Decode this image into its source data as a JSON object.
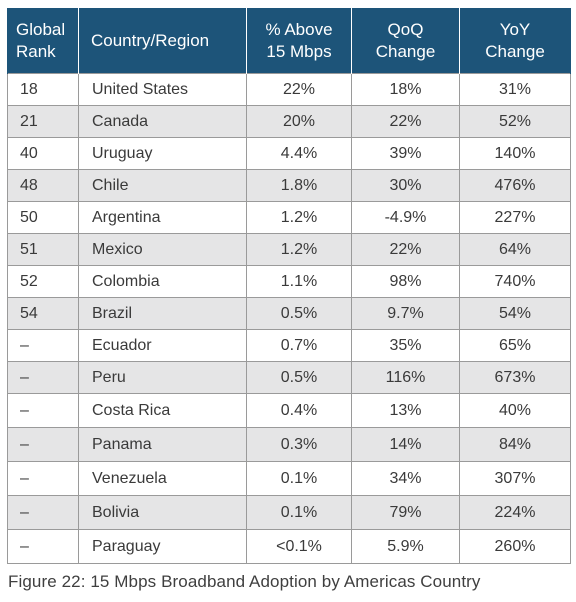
{
  "table": {
    "headers": {
      "rank_line1": "Global",
      "rank_line2": "Rank",
      "country": "Country/Region",
      "above_line1": "% Above",
      "above_line2": "15 Mbps",
      "qoq_line1": "QoQ",
      "qoq_line2": "Change",
      "yoy_line1": "YoY",
      "yoy_line2": "Change"
    },
    "rows": [
      {
        "rank": "18",
        "country": "United States",
        "above": "22%",
        "qoq": "18%",
        "yoy": "31%"
      },
      {
        "rank": "21",
        "country": "Canada",
        "above": "20%",
        "qoq": "22%",
        "yoy": "52%"
      },
      {
        "rank": "40",
        "country": "Uruguay",
        "above": "4.4%",
        "qoq": "39%",
        "yoy": "140%"
      },
      {
        "rank": "48",
        "country": "Chile",
        "above": "1.8%",
        "qoq": "30%",
        "yoy": "476%"
      },
      {
        "rank": "50",
        "country": "Argentina",
        "above": "1.2%",
        "qoq": "-4.9%",
        "yoy": "227%"
      },
      {
        "rank": "51",
        "country": "Mexico",
        "above": "1.2%",
        "qoq": "22%",
        "yoy": "64%"
      },
      {
        "rank": "52",
        "country": "Colombia",
        "above": "1.1%",
        "qoq": "98%",
        "yoy": "740%"
      },
      {
        "rank": "54",
        "country": "Brazil",
        "above": "0.5%",
        "qoq": "9.7%",
        "yoy": "54%"
      },
      {
        "rank": "–",
        "country": "Ecuador",
        "above": "0.7%",
        "qoq": "35%",
        "yoy": "65%"
      },
      {
        "rank": "–",
        "country": "Peru",
        "above": "0.5%",
        "qoq": "116%",
        "yoy": "673%"
      },
      {
        "rank": "–",
        "country": "Costa Rica",
        "above": "0.4%",
        "qoq": "13%",
        "yoy": "40%"
      },
      {
        "rank": "–",
        "country": "Panama",
        "above": "0.3%",
        "qoq": "14%",
        "yoy": "84%"
      },
      {
        "rank": "–",
        "country": "Venezuela",
        "above": "0.1%",
        "qoq": "34%",
        "yoy": "307%"
      },
      {
        "rank": "–",
        "country": "Bolivia",
        "above": "0.1%",
        "qoq": "79%",
        "yoy": "224%"
      },
      {
        "rank": "–",
        "country": "Paraguay",
        "above": "<0.1%",
        "qoq": "5.9%",
        "yoy": "260%"
      }
    ]
  },
  "caption": "Figure 22: 15 Mbps Broadband Adoption by Americas Country",
  "colors": {
    "header_bg": "#1d5479",
    "header_text": "#ffffff",
    "stripe_bg": "#e5e5e6",
    "border": "#9a9a9a"
  }
}
